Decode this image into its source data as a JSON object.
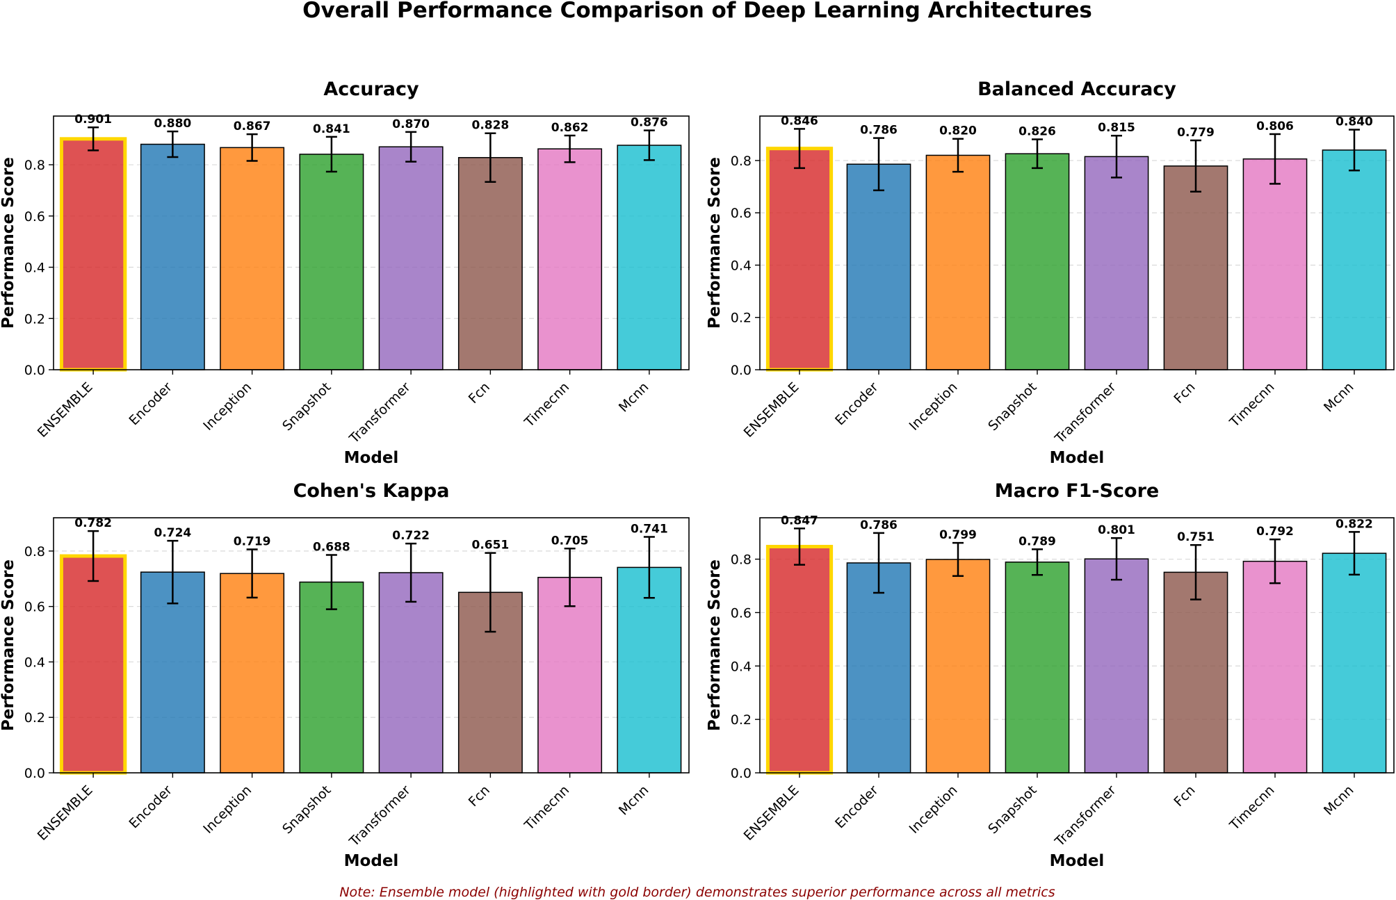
{
  "figure": {
    "title": "Overall Performance Comparison of Deep Learning Architectures",
    "note": "Note: Ensemble model (highlighted with gold border) demonstrates superior performance across all metrics",
    "highlight_color": "#FFD700",
    "colors": [
      "#d62728",
      "#1f77b4",
      "#ff7f0e",
      "#2ca02c",
      "#9467bd",
      "#8c564b",
      "#e377c2",
      "#17becf"
    ]
  },
  "chart_data": [
    {
      "type": "bar",
      "title": "Accuracy",
      "xlabel": "Model",
      "ylabel": "Performance Score",
      "categories": [
        "ENSEMBLE",
        "Encoder",
        "Inception",
        "Snapshot",
        "Transformer",
        "Fcn",
        "Timecnn",
        "Mcnn"
      ],
      "values": [
        0.901,
        0.88,
        0.867,
        0.841,
        0.87,
        0.828,
        0.862,
        0.876
      ],
      "value_labels": [
        "0.901",
        "0.880",
        "0.867",
        "0.841",
        "0.870",
        "0.828",
        "0.862",
        "0.876"
      ],
      "errors": [
        0.045,
        0.05,
        0.052,
        0.068,
        0.058,
        0.095,
        0.052,
        0.058
      ],
      "ylim": [
        0,
        0.99
      ],
      "yticks": [
        0.0,
        0.2,
        0.4,
        0.6,
        0.8
      ],
      "ytick_labels": [
        "0.0",
        "0.2",
        "0.4",
        "0.6",
        "0.8"
      ],
      "grid": "y-dashed",
      "highlight_index": 0
    },
    {
      "type": "bar",
      "title": "Balanced Accuracy",
      "xlabel": "Model",
      "ylabel": "Performance Score",
      "categories": [
        "ENSEMBLE",
        "Encoder",
        "Inception",
        "Snapshot",
        "Transformer",
        "Fcn",
        "Timecnn",
        "Mcnn"
      ],
      "values": [
        0.846,
        0.786,
        0.82,
        0.826,
        0.815,
        0.779,
        0.806,
        0.84
      ],
      "value_labels": [
        "0.846",
        "0.786",
        "0.820",
        "0.826",
        "0.815",
        "0.779",
        "0.806",
        "0.840"
      ],
      "errors": [
        0.075,
        0.1,
        0.063,
        0.055,
        0.08,
        0.098,
        0.095,
        0.078
      ],
      "ylim": [
        0,
        0.97
      ],
      "yticks": [
        0.0,
        0.2,
        0.4,
        0.6,
        0.8
      ],
      "ytick_labels": [
        "0.0",
        "0.2",
        "0.4",
        "0.6",
        "0.8"
      ],
      "grid": "y-dashed",
      "highlight_index": 0
    },
    {
      "type": "bar",
      "title": "Cohen's Kappa",
      "xlabel": "Model",
      "ylabel": "Performance Score",
      "categories": [
        "ENSEMBLE",
        "Encoder",
        "Inception",
        "Snapshot",
        "Transformer",
        "Fcn",
        "Timecnn",
        "Mcnn"
      ],
      "values": [
        0.782,
        0.724,
        0.719,
        0.688,
        0.722,
        0.651,
        0.705,
        0.741
      ],
      "value_labels": [
        "0.782",
        "0.724",
        "0.719",
        "0.688",
        "0.722",
        "0.651",
        "0.705",
        "0.741"
      ],
      "errors": [
        0.09,
        0.113,
        0.087,
        0.098,
        0.105,
        0.142,
        0.104,
        0.11
      ],
      "ylim": [
        0,
        0.92
      ],
      "yticks": [
        0.0,
        0.2,
        0.4,
        0.6,
        0.8
      ],
      "ytick_labels": [
        "0.0",
        "0.2",
        "0.4",
        "0.6",
        "0.8"
      ],
      "grid": "y-dashed",
      "highlight_index": 0
    },
    {
      "type": "bar",
      "title": "Macro F1-Score",
      "xlabel": "Model",
      "ylabel": "Performance Score",
      "categories": [
        "ENSEMBLE",
        "Encoder",
        "Inception",
        "Snapshot",
        "Transformer",
        "Fcn",
        "Timecnn",
        "Mcnn"
      ],
      "values": [
        0.847,
        0.786,
        0.799,
        0.789,
        0.801,
        0.751,
        0.792,
        0.822
      ],
      "value_labels": [
        "0.847",
        "0.786",
        "0.799",
        "0.789",
        "0.801",
        "0.751",
        "0.792",
        "0.822"
      ],
      "errors": [
        0.068,
        0.112,
        0.062,
        0.048,
        0.078,
        0.102,
        0.082,
        0.08
      ],
      "ylim": [
        0,
        0.955
      ],
      "yticks": [
        0.0,
        0.2,
        0.4,
        0.6,
        0.8
      ],
      "ytick_labels": [
        "0.0",
        "0.2",
        "0.4",
        "0.6",
        "0.8"
      ],
      "grid": "y-dashed",
      "highlight_index": 0
    }
  ]
}
